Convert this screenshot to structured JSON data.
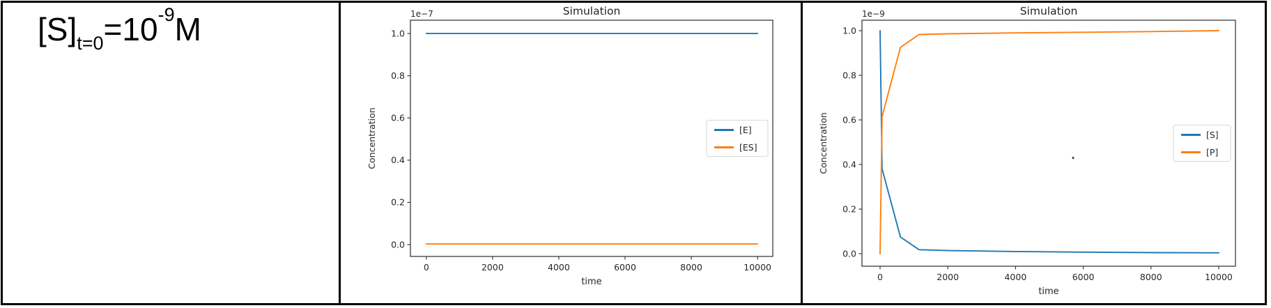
{
  "formula": {
    "base": "[S]",
    "subscript": "t=0",
    "body": "=10",
    "exponent": "-9",
    "unit": "M"
  },
  "colors": {
    "series_blue": "#1f77b4",
    "series_orange": "#ff7f0e",
    "axes_stroke": "#3a3a3a",
    "text": "#262626",
    "legend_border": "#d9d9d9",
    "table_border": "#000000"
  },
  "chart_data": [
    {
      "name": "enzyme-complex-simulation",
      "type": "line",
      "title": "Simulation",
      "xlabel": "time",
      "ylabel": "Concentration",
      "offset_text": "1e−7",
      "y_scale_factor": "1e-7",
      "x_ticks": [
        0,
        2000,
        4000,
        6000,
        8000,
        10000
      ],
      "y_tick_labels": [
        "0.0",
        "0.2",
        "0.4",
        "0.6",
        "0.8",
        "1.0"
      ],
      "xlim": [
        -480,
        10460
      ],
      "ylim": [
        -0.056,
        1.063
      ],
      "grid": false,
      "legend": {
        "position": "center right",
        "entries": [
          "[E]",
          "[ES]"
        ]
      },
      "series": [
        {
          "name": "[E]",
          "color": "#1f77b4",
          "x": [
            0,
            10000
          ],
          "y": [
            1.0,
            1.0
          ]
        },
        {
          "name": "[ES]",
          "color": "#ff7f0e",
          "x": [
            0,
            10000
          ],
          "y": [
            0.003,
            0.003
          ]
        }
      ]
    },
    {
      "name": "substrate-product-simulation",
      "type": "line",
      "title": "Simulation",
      "xlabel": "time",
      "ylabel": "Concentration",
      "offset_text": "1e−9",
      "y_scale_factor": "1e-9",
      "x_ticks": [
        0,
        2000,
        4000,
        6000,
        8000,
        10000
      ],
      "y_tick_labels": [
        "0.0",
        "0.2",
        "0.4",
        "0.6",
        "0.8",
        "1.0"
      ],
      "xlim": [
        -535,
        10494
      ],
      "ylim": [
        -0.056,
        1.047
      ],
      "grid": false,
      "legend": {
        "position": "center right",
        "entries": [
          "[S]",
          "[P]"
        ]
      },
      "series": [
        {
          "name": "[S]",
          "color": "#1f77b4",
          "x": [
            0,
            60,
            600,
            1150,
            2000,
            4000,
            6000,
            8000,
            10000
          ],
          "y": [
            1.0,
            0.38,
            0.075,
            0.018,
            0.014,
            0.01,
            0.007,
            0.005,
            0.004
          ]
        },
        {
          "name": "[P]",
          "color": "#ff7f0e",
          "x": [
            0,
            60,
            600,
            1150,
            2000,
            4000,
            6000,
            8000,
            10000
          ],
          "y": [
            0.0,
            0.615,
            0.925,
            0.983,
            0.986,
            0.99,
            0.993,
            0.996,
            1.0
          ]
        }
      ],
      "stray_dot": {
        "x": 5700,
        "y": 0.43
      }
    }
  ]
}
